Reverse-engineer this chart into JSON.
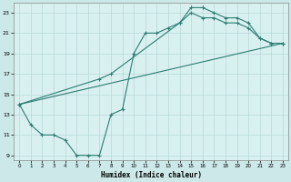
{
  "xlabel": "Humidex (Indice chaleur)",
  "bg_color": "#cce8e8",
  "plot_bg": "#d8f0f0",
  "grid_color": "#b8d8d8",
  "line_color": "#2e7d72",
  "xlim": [
    -0.5,
    23.5
  ],
  "ylim": [
    8.5,
    24.0
  ],
  "xticks": [
    0,
    1,
    2,
    3,
    4,
    5,
    6,
    7,
    8,
    9,
    10,
    11,
    12,
    13,
    14,
    15,
    16,
    17,
    18,
    19,
    20,
    21,
    22,
    23
  ],
  "yticks": [
    9,
    11,
    13,
    15,
    17,
    19,
    21,
    23
  ],
  "line1_x": [
    0,
    1,
    2,
    3,
    4,
    5,
    6,
    7,
    8,
    9,
    10,
    11,
    12,
    13,
    14,
    15,
    16,
    17,
    18,
    19,
    20,
    21,
    22,
    23
  ],
  "line1_y": [
    14,
    12,
    11,
    11,
    10.5,
    9,
    9,
    9,
    13,
    13.5,
    19,
    21,
    21,
    21.5,
    22,
    23.5,
    23.5,
    23,
    22.5,
    22.5,
    22,
    20.5,
    20,
    20
  ],
  "line2_x": [
    0,
    7,
    8,
    14,
    15,
    16,
    17,
    18,
    19,
    20,
    21,
    22,
    23
  ],
  "line2_y": [
    14,
    16.5,
    17,
    22,
    23,
    22.5,
    22.5,
    22,
    22,
    21.5,
    20.5,
    20,
    20
  ],
  "line3_x": [
    0,
    23
  ],
  "line3_y": [
    14,
    20
  ]
}
